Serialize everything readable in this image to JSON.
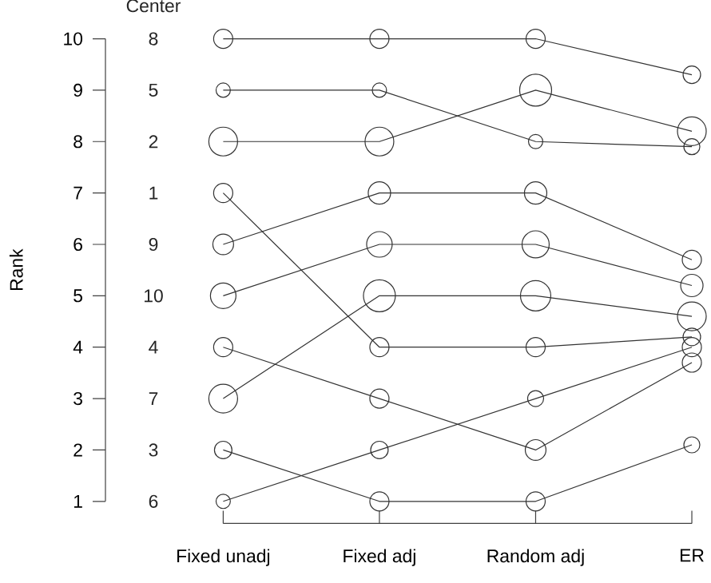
{
  "chart_data": {
    "type": "bubble",
    "relative": false,
    "ylabel": "Rank",
    "categories": [
      "Fixed unadj",
      "Fixed adj",
      "Random adj",
      "ER"
    ],
    "ylim": [
      1,
      10
    ],
    "yticks": [
      1,
      2,
      3,
      4,
      5,
      6,
      7,
      8,
      9,
      10
    ],
    "marker": "circle",
    "line_style": "solid",
    "annotations": [
      "Center",
      "8",
      "5",
      "2",
      "1",
      "9",
      "10",
      "4",
      "7",
      "3",
      "6"
    ],
    "series": [
      {
        "color": "#333333",
        "values": [
          10,
          10,
          10,
          9.3
        ],
        "sizes": [
          0.36,
          0.36,
          0.36,
          0.3
        ]
      },
      {
        "color": "#333333",
        "values": [
          9,
          9,
          8,
          7.9
        ],
        "sizes": [
          0.2,
          0.2,
          0.2,
          0.25
        ]
      },
      {
        "color": "#333333",
        "values": [
          8,
          8,
          9,
          8.2
        ],
        "sizes": [
          0.81,
          0.81,
          1,
          0.81
        ]
      },
      {
        "color": "#333333",
        "values": [
          7,
          4,
          4,
          4.2
        ],
        "sizes": [
          0.36,
          0.36,
          0.36,
          0.3
        ]
      },
      {
        "color": "#333333",
        "values": [
          6,
          7,
          7,
          5.7
        ],
        "sizes": [
          0.42,
          0.49,
          0.49,
          0.36
        ]
      },
      {
        "color": "#333333",
        "values": [
          5,
          6,
          6,
          5.2
        ],
        "sizes": [
          0.64,
          0.64,
          0.72,
          0.49
        ]
      },
      {
        "color": "#333333",
        "values": [
          4,
          3,
          2,
          3.7
        ],
        "sizes": [
          0.36,
          0.36,
          0.42,
          0.36
        ]
      },
      {
        "color": "#333333",
        "values": [
          3,
          5,
          5,
          4.6
        ],
        "sizes": [
          0.81,
          1,
          0.9,
          0.81
        ]
      },
      {
        "color": "#333333",
        "values": [
          2,
          1,
          1,
          2.1
        ],
        "sizes": [
          0.3,
          0.36,
          0.36,
          0.25
        ]
      },
      {
        "color": "#333333",
        "values": [
          1,
          2,
          3,
          4.0
        ],
        "sizes": [
          0.2,
          0.3,
          0.25,
          0.36
        ]
      },
      {
        "type": "line",
        "marker": "none",
        "color": "#333333",
        "values": [
          10,
          10,
          10,
          9.3
        ]
      },
      {
        "type": "line",
        "marker": "none",
        "color": "#333333",
        "values": [
          9,
          9,
          8,
          7.9
        ]
      },
      {
        "type": "line",
        "marker": "none",
        "color": "#333333",
        "values": [
          8,
          8,
          9,
          8.2
        ]
      },
      {
        "type": "line",
        "marker": "none",
        "color": "#333333",
        "values": [
          7,
          4,
          4,
          4.2
        ]
      },
      {
        "type": "line",
        "marker": "none",
        "color": "#333333",
        "values": [
          6,
          7,
          7,
          5.7
        ]
      },
      {
        "type": "line",
        "marker": "none",
        "color": "#333333",
        "values": [
          5,
          6,
          6,
          5.2
        ]
      },
      {
        "type": "line",
        "marker": "none",
        "color": "#333333",
        "values": [
          4,
          3,
          2,
          3.7
        ]
      },
      {
        "type": "line",
        "marker": "none",
        "color": "#333333",
        "values": [
          3,
          5,
          5,
          4.6
        ]
      },
      {
        "type": "line",
        "marker": "none",
        "color": "#333333",
        "values": [
          2,
          1,
          1,
          2.1
        ]
      },
      {
        "type": "line",
        "marker": "none",
        "color": "#333333",
        "values": [
          1,
          2,
          3,
          4.0
        ]
      }
    ]
  }
}
